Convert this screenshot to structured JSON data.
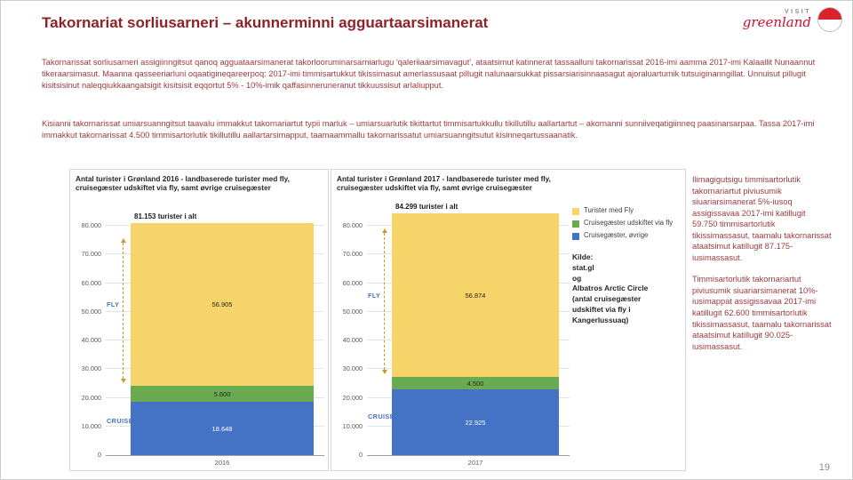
{
  "slide": {
    "title": "Takornariat sorliusarneri – akunnerminni agguartaarsimanerat",
    "body_paragraph_1": "Takornarissat sorliusarneri assigiinngitsut qanoq agguataarsimanerat takorlooruminarsarniarlugu 'qaleriiaarsimavagut', ataatsimut katinnerat tassaalluni takornarissat 2016-imi aamma 2017-imi Kalaallit Nunaannut tikeraarsimasut. Maanna qasseeriarluni oqaatigineqareerpoq: 2017-imi timmisartukkut tikissimasut amerlassusaat pillugit nalunaarsukkat pissarsiarisinnaasagut ajoraluartumik tutsuiginanngillat. Unnuisut pillugit kisitsisinut naleqqiukkaangatsigit kisitsisit eqqortut 5% - 10%-imik qaffasinneruneranut tikkuussisut arlaliupput.",
    "body_paragraph_2": "Kisianni takornarissat umiarsuanngitsut taavalu immakkut takornariartut typii marluk – umiarsuarlutik tikittartut timmisartukkullu tikillutillu aallartartut – akornanni sunniiveqatigiinneq paasinarsarpaa. Tassa 2017-imi immakkut takornarissat 4.500 timmisartorlutik tikillutillu aallartarsimapput, taamaammallu takornarissatut umiarsuanngitsutut kisinneqartussaanatik.",
    "page_number": "19"
  },
  "logo": {
    "visit": "VISIT",
    "greenland": "greenland"
  },
  "sidebar": {
    "paragraph_1": "Ilimagigutsigu timmisartorlutik takornariartut piviusumik siuariarsimanerat 5%-iusoq assigissavaa 2017-imi katillugit 59.750 timmisartorlutik tikissimassasut, taamalu takornarissat ataatsimut katillugit 87.175-iusimassasut.",
    "paragraph_2": "Timmisartorlutik takornariartut piviusumik siuariarsimanerat 10%-iusimappat assigissavaa 2017-imi katillugit 62.600 timmisartorlutik tikissimassasut, taamalu takornarissat ataatsimut katillugit 90.025-iusimassasut."
  },
  "chart_data": [
    {
      "type": "bar",
      "stacked": true,
      "title": "Antal turister i Grønland 2016 - landbaserede turister med fly, cruisegæster udskiftet via fly, samt øvrige cruisegæster",
      "categories": [
        "2016"
      ],
      "xlabel": "2016",
      "ylim": [
        0,
        90000
      ],
      "grid": true,
      "series": [
        {
          "name": "Cruisegæster, øvrige",
          "values": [
            18648
          ],
          "label": "18.648",
          "color": "#4472c4",
          "label_color": "#ffffff"
        },
        {
          "name": "Cruisegæster udskiftet via fly",
          "values": [
            5600
          ],
          "label": "5.600",
          "color": "#6aaa50",
          "label_color": "#262626"
        },
        {
          "name": "Turister med Fly",
          "values": [
            56905
          ],
          "label": "56.905",
          "color": "#f6d46a",
          "label_color": "#262626"
        }
      ],
      "total": 81153,
      "total_label": "81.153 turister i alt",
      "yticks": [
        {
          "v": 0,
          "label": "0"
        },
        {
          "v": 10000,
          "label": "10.000"
        },
        {
          "v": 20000,
          "label": "20.000"
        },
        {
          "v": 30000,
          "label": "30.000"
        },
        {
          "v": 40000,
          "label": "40.000"
        },
        {
          "v": 50000,
          "label": "50.000"
        },
        {
          "v": 60000,
          "label": "60.000"
        },
        {
          "v": 70000,
          "label": "70.000"
        },
        {
          "v": 80000,
          "label": "80.000"
        }
      ],
      "annotations": [
        {
          "label": "FLY",
          "from": 24248,
          "to": 81153,
          "arrow": true
        },
        {
          "label": "CRUISE",
          "from": 0,
          "to": 24248,
          "arrow": false
        }
      ]
    },
    {
      "type": "bar",
      "stacked": true,
      "title": "Antal turister i Grønland 2017 - landbaserede turister med fly, cruisegæster udskiftet via fly, samt øvrige cruisegæster",
      "categories": [
        "2017"
      ],
      "xlabel": "2017",
      "ylim": [
        0,
        90000
      ],
      "grid": true,
      "series": [
        {
          "name": "Cruisegæster, øvrige",
          "values": [
            22925
          ],
          "label": "22.925",
          "color": "#4472c4",
          "label_color": "#ffffff"
        },
        {
          "name": "Cruisegæster udskiftet via fly",
          "values": [
            4500
          ],
          "label": "4.500",
          "color": "#6aaa50",
          "label_color": "#262626"
        },
        {
          "name": "Turister med Fly",
          "values": [
            56874
          ],
          "label": "56.874",
          "color": "#f6d46a",
          "label_color": "#262626"
        }
      ],
      "total": 84299,
      "total_label": "84.299 turister i alt",
      "yticks": [
        {
          "v": 0,
          "label": "0"
        },
        {
          "v": 10000,
          "label": "10.000"
        },
        {
          "v": 20000,
          "label": "20.000"
        },
        {
          "v": 30000,
          "label": "30.000"
        },
        {
          "v": 40000,
          "label": "40.000"
        },
        {
          "v": 50000,
          "label": "50.000"
        },
        {
          "v": 60000,
          "label": "60.000"
        },
        {
          "v": 70000,
          "label": "70.000"
        },
        {
          "v": 80000,
          "label": "80.000"
        }
      ],
      "annotations": [
        {
          "label": "FLY",
          "from": 27425,
          "to": 84299,
          "arrow": true
        },
        {
          "label": "CRUISE",
          "from": 0,
          "to": 27425,
          "arrow": false
        }
      ],
      "legend": [
        {
          "label": "Turister med Fly",
          "color": "#f6d46a"
        },
        {
          "label": "Cruisegæster udskiftet via fly",
          "color": "#6aaa50"
        },
        {
          "label": "Cruisegæster, øvrige",
          "color": "#4472c4"
        }
      ],
      "source_lines": [
        "Kilde:",
        "stat.gl",
        "og",
        "Albatros Arctic Circle",
        "(antal cruisegæster",
        "udskiftet via fly i",
        "Kangerlussuaq)"
      ]
    }
  ]
}
